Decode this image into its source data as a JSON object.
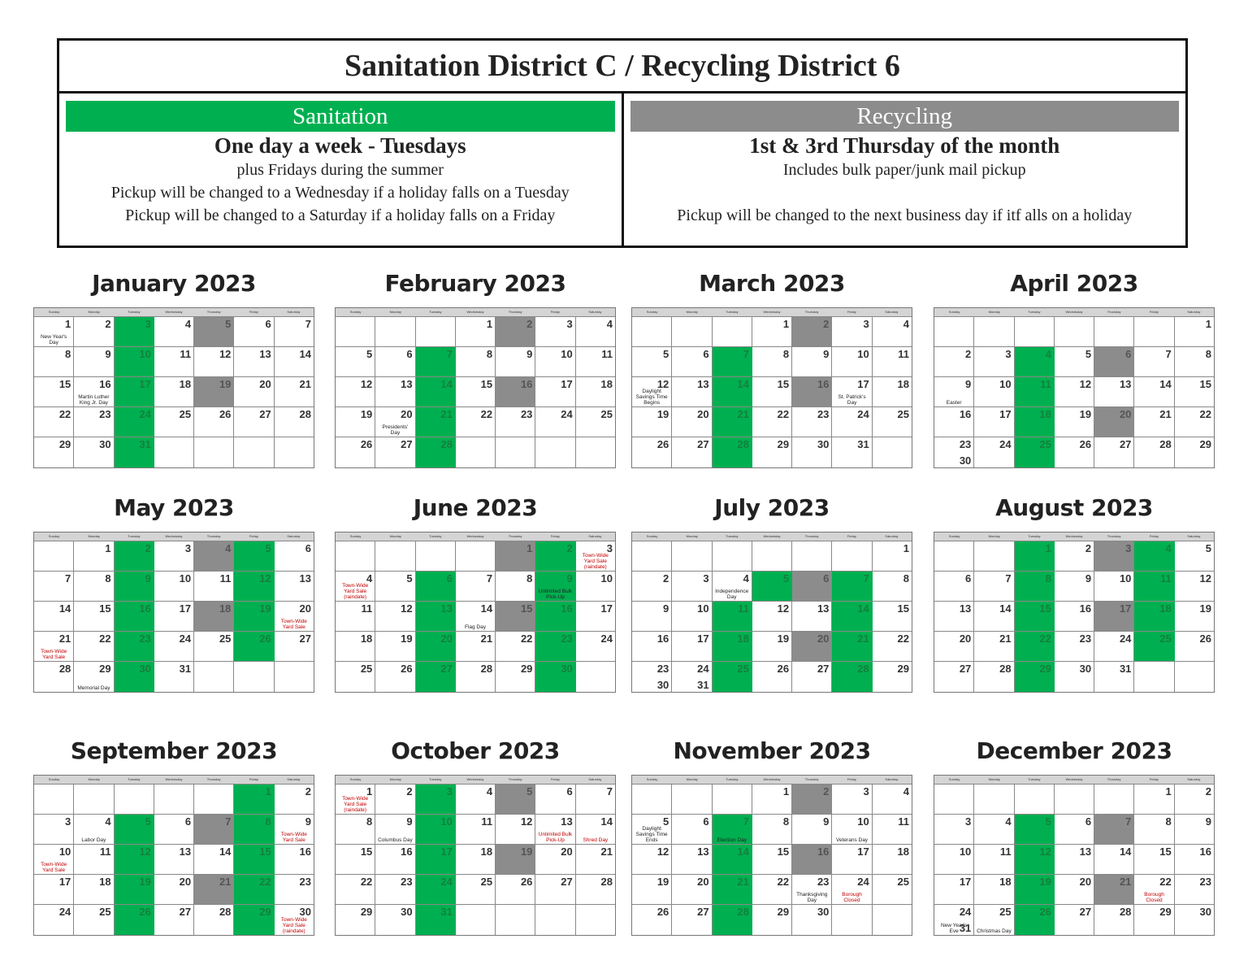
{
  "header": {
    "title": "Sanitation District C / Recycling District 6",
    "sanitation": {
      "label": "Sanitation",
      "subtitle": "One day a week - Tuesdays",
      "lines": [
        "plus Fridays during the summer",
        "Pickup will be changed to a Wednesday if a holiday falls on a Tuesday",
        "Pickup will be changed to a Saturday if a holiday falls on a Friday"
      ]
    },
    "recycling": {
      "label": "Recycling",
      "subtitle": "1st & 3rd Thursday of the month",
      "lines": [
        "Includes bulk paper/junk mail pickup",
        "",
        "Pickup will be changed to the next business day if itf alls on a holiday"
      ]
    }
  },
  "colors": {
    "sanitation": "#00b050",
    "recycling": "#8c8c8c",
    "event": "#c00000"
  },
  "weekdays": [
    "Sunday",
    "Monday",
    "Tuesday",
    "Wednesday",
    "Thursday",
    "Friday",
    "Saturday"
  ],
  "months": [
    {
      "name": "January 2023",
      "start": 0,
      "days": 31,
      "green": [
        3,
        10,
        17,
        24,
        31
      ],
      "gray": [
        5,
        19
      ],
      "notes": [
        {
          "day": 1,
          "text": "New Year's Day"
        },
        {
          "day": 16,
          "text": "Martin Luther King Jr. Day"
        }
      ]
    },
    {
      "name": "February 2023",
      "start": 3,
      "days": 28,
      "green": [
        7,
        14,
        21,
        28
      ],
      "gray": [
        2,
        16
      ],
      "notes": [
        {
          "day": 20,
          "text": "Presidents' Day"
        }
      ]
    },
    {
      "name": "March 2023",
      "start": 3,
      "days": 31,
      "green": [
        7,
        14,
        21,
        28
      ],
      "gray": [
        2,
        16
      ],
      "notes": [
        {
          "day": 12,
          "text": "Daylight Savings Time Begins"
        },
        {
          "day": 17,
          "text": "St. Patrick's Day"
        }
      ]
    },
    {
      "name": "April 2023",
      "start": 6,
      "days": 30,
      "green": [
        4,
        11,
        18,
        25
      ],
      "gray": [
        6,
        20
      ],
      "notes": [
        {
          "day": 9,
          "text": "Easter"
        }
      ]
    },
    {
      "name": "May 2023",
      "start": 1,
      "days": 31,
      "green": [
        2,
        5,
        9,
        12,
        16,
        19,
        23,
        26,
        30
      ],
      "gray": [
        4,
        18
      ],
      "notes": [
        {
          "day": 20,
          "text": "Town-Wide Yard Sale",
          "red": true
        },
        {
          "day": 21,
          "text": "Town-Wide Yard Sale",
          "red": true
        },
        {
          "day": 29,
          "text": "Memorial Day"
        }
      ]
    },
    {
      "name": "June 2023",
      "start": 4,
      "days": 30,
      "green": [
        2,
        6,
        9,
        13,
        16,
        20,
        23,
        27,
        30
      ],
      "gray": [
        1,
        15
      ],
      "notes": [
        {
          "day": 3,
          "text": "Town-Wide Yard Sale (raindate)",
          "red": true
        },
        {
          "day": 4,
          "text": "Town-Wide Yard Sale (raindate)",
          "red": true
        },
        {
          "day": 9,
          "text": "Unlimited Bulk Pick-Up"
        },
        {
          "day": 14,
          "text": "Flag Day"
        }
      ]
    },
    {
      "name": "July 2023",
      "start": 6,
      "days": 31,
      "green": [
        5,
        7,
        11,
        14,
        18,
        21,
        25,
        28
      ],
      "gray": [
        6,
        20
      ],
      "notes": [
        {
          "day": 4,
          "text": "Independence Day"
        }
      ]
    },
    {
      "name": "August 2023",
      "start": 2,
      "days": 31,
      "green": [
        1,
        4,
        8,
        11,
        15,
        18,
        22,
        25,
        29
      ],
      "gray": [
        3,
        17
      ],
      "notes": []
    },
    {
      "name": "September 2023",
      "start": 5,
      "days": 30,
      "green": [
        1,
        5,
        8,
        12,
        15,
        19,
        22,
        26,
        29
      ],
      "gray": [
        7,
        21
      ],
      "notes": [
        {
          "day": 4,
          "text": "Labor Day"
        },
        {
          "day": 9,
          "text": "Town-Wide Yard Sale",
          "red": true
        },
        {
          "day": 10,
          "text": "Town-Wide Yard Sale",
          "red": true
        },
        {
          "day": 30,
          "text": "Town-Wide Yard Sale (raindate)",
          "red": true
        }
      ]
    },
    {
      "name": "October 2023",
      "start": 0,
      "days": 31,
      "green": [
        3,
        10,
        17,
        24,
        31
      ],
      "gray": [
        5,
        19
      ],
      "notes": [
        {
          "day": 1,
          "text": "Town-Wide Yard Sale (raindate)",
          "red": true
        },
        {
          "day": 9,
          "text": "Columbus Day"
        },
        {
          "day": 13,
          "text": "Unlimited Bulk Pick-Up",
          "red": true
        },
        {
          "day": 14,
          "text": "Shred Day",
          "red": true
        }
      ]
    },
    {
      "name": "November 2023",
      "start": 3,
      "days": 30,
      "green": [
        7,
        14,
        21,
        28
      ],
      "gray": [
        2,
        16
      ],
      "notes": [
        {
          "day": 5,
          "text": "Daylight Savings Time Ends"
        },
        {
          "day": 7,
          "text": "Election Day"
        },
        {
          "day": 10,
          "text": "Veterans Day"
        },
        {
          "day": 23,
          "text": "Thanksgiving Day"
        },
        {
          "day": 24,
          "text": "Borough Closed",
          "red": true
        }
      ]
    },
    {
      "name": "December 2023",
      "start": 5,
      "days": 31,
      "green": [
        5,
        12,
        19,
        26
      ],
      "gray": [
        7,
        21
      ],
      "notes": [
        {
          "day": 22,
          "text": "Borough Closed",
          "red": true
        },
        {
          "day": 25,
          "text": "Christmas Day"
        },
        {
          "day": 31,
          "text": "New Year's Eve"
        }
      ]
    }
  ]
}
